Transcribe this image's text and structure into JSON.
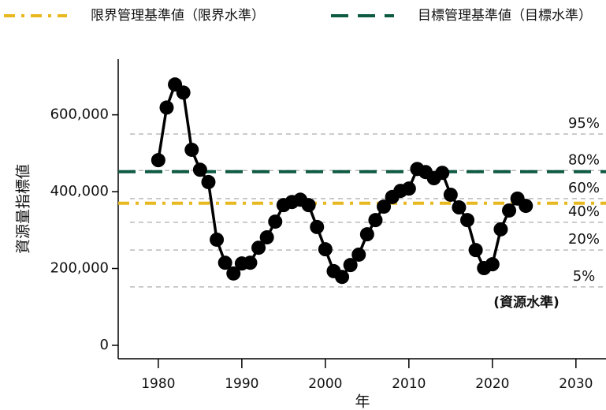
{
  "chart_data": {
    "type": "line",
    "x_label": "年",
    "y_label": "資源量指標値",
    "x": [
      1980,
      1981,
      1982,
      1983,
      1984,
      1985,
      1986,
      1987,
      1988,
      1989,
      1990,
      1991,
      1992,
      1993,
      1994,
      1995,
      1996,
      1997,
      1998,
      1999,
      2000,
      2001,
      2002,
      2003,
      2004,
      2005,
      2006,
      2007,
      2008,
      2009,
      2010,
      2011,
      2012,
      2013,
      2014,
      2015,
      2016,
      2017,
      2018,
      2019,
      2020,
      2021,
      2022,
      2023,
      2024
    ],
    "series": [
      {
        "color": "#000000",
        "values": [
          482000,
          619000,
          679000,
          658000,
          509000,
          457000,
          425000,
          275000,
          215000,
          187000,
          213000,
          215000,
          254000,
          281000,
          322000,
          365000,
          373000,
          379000,
          365000,
          308000,
          250000,
          193000,
          178000,
          209000,
          236000,
          289000,
          326000,
          361000,
          386000,
          402000,
          408000,
          459000,
          451000,
          435000,
          449000,
          392000,
          359000,
          326000,
          248000,
          201000,
          211000,
          302000,
          351000,
          382000,
          363000
        ]
      }
    ],
    "reference_lines": [
      {
        "name": "限界管理基準値（限界水準）",
        "value": 370000,
        "color": "#e8b820",
        "style": "dashdot"
      },
      {
        "name": "目標管理基準値（目標水準）",
        "value": 452000,
        "color": "#0e5a42",
        "style": "dash"
      }
    ],
    "level_title": "(資源水準)",
    "level_lines": [
      {
        "label": "95%",
        "value": 550000
      },
      {
        "label": "80%",
        "value": 455000
      },
      {
        "label": "60%",
        "value": 382000
      },
      {
        "label": "40%",
        "value": 320000
      },
      {
        "label": "20%",
        "value": 248000
      },
      {
        "label": "5%",
        "value": 152000
      }
    ],
    "xlim": [
      1975.2,
      2033.6
    ],
    "ylim": [
      -35000,
      745000
    ],
    "xticks": [
      1980,
      1990,
      2000,
      2010,
      2020,
      2030
    ],
    "yticks": [
      0,
      {
        "value": 200000,
        "label": "200,000"
      },
      {
        "value": 400000,
        "label": "400,000"
      },
      {
        "value": 600000,
        "label": "600,000"
      }
    ]
  }
}
